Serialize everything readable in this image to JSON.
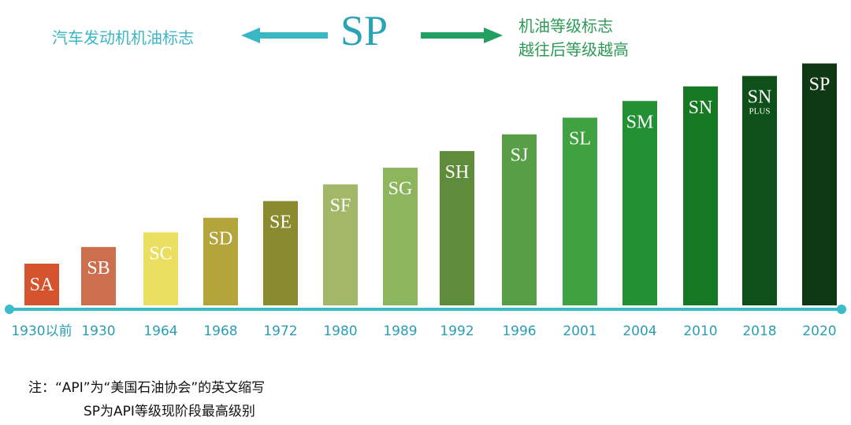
{
  "header": {
    "left_text": "汽车发动机机油标志",
    "center_text": "SP",
    "right_line1": "机油等级标志",
    "right_line2": "越往后等级越高"
  },
  "colors": {
    "teal": "#2aa3b8",
    "left_arrow": "#3bb6c4",
    "right_arrow": "#22a062",
    "axis": "#3bbcc8",
    "tick_text": "#2b9db3"
  },
  "chart_data": {
    "type": "bar",
    "categories": [
      "1930以前",
      "1930",
      "1964",
      "1968",
      "1972",
      "1980",
      "1989",
      "1992",
      "1996",
      "2001",
      "2004",
      "2010",
      "2018",
      "2020"
    ],
    "values": [
      1,
      1.4,
      1.75,
      2.1,
      2.5,
      2.9,
      3.3,
      3.7,
      4.1,
      4.5,
      4.9,
      5.25,
      5.5,
      5.8
    ],
    "labels": [
      "SA",
      "SB",
      "SC",
      "SD",
      "SE",
      "SF",
      "SG",
      "SH",
      "SJ",
      "SL",
      "SM",
      "SN",
      "SN",
      "SP"
    ],
    "sublabels": [
      "",
      "",
      "",
      "",
      "",
      "",
      "",
      "",
      "",
      "",
      "",
      "",
      "PLUS",
      ""
    ],
    "colors": [
      "#d5542e",
      "#cd6e4e",
      "#ebdf62",
      "#b4a43c",
      "#8a8a2e",
      "#a2b868",
      "#8db55e",
      "#5f8c3a",
      "#579e47",
      "#3fa13f",
      "#239034",
      "#157823",
      "#0e4f1a",
      "#0f3815"
    ],
    "ylim": [
      0,
      6
    ]
  },
  "note": {
    "line1": "注：“API”为“美国石油协会”的英文缩写",
    "line2": "SP为API等级现阶段最高级别"
  }
}
